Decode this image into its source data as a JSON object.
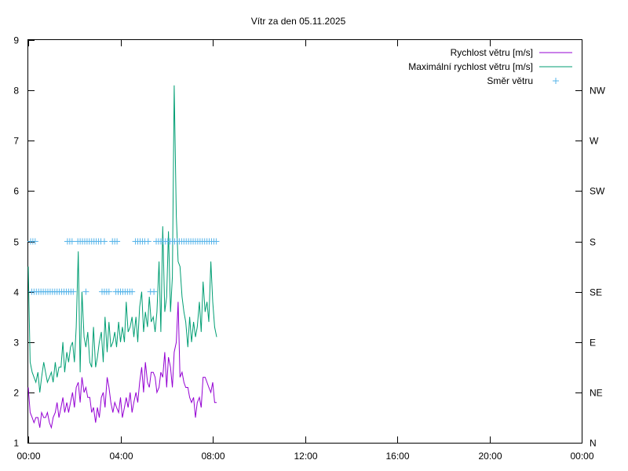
{
  "chart_data": {
    "type": "line",
    "title": "Vítr za den 05.11.2025",
    "x_unit": "hours",
    "xlim": [
      0,
      24
    ],
    "x_tick_values": [
      0,
      4,
      8,
      12,
      16,
      20,
      24
    ],
    "x_tick_labels": [
      "00:00",
      "04:00",
      "08:00",
      "12:00",
      "16:00",
      "20:00",
      "00:00"
    ],
    "ylim": [
      1,
      9
    ],
    "y_ticks": [
      1,
      2,
      3,
      4,
      5,
      6,
      7,
      8,
      9
    ],
    "y2_ticks": [
      1,
      2,
      3,
      4,
      5,
      6,
      7,
      8
    ],
    "y2_tick_labels": [
      "N",
      "NE",
      "E",
      "SE",
      "S",
      "SW",
      "W",
      "NW"
    ],
    "grid": false,
    "legend_position": "top-right",
    "series": [
      {
        "name": "Rychlost větru [m/s]",
        "style": "line",
        "color": "#9400d3",
        "x": [
          0,
          0.08,
          0.17,
          0.25,
          0.33,
          0.42,
          0.5,
          0.58,
          0.67,
          0.75,
          0.83,
          0.92,
          1.0,
          1.08,
          1.17,
          1.25,
          1.33,
          1.42,
          1.5,
          1.58,
          1.67,
          1.75,
          1.83,
          1.92,
          2.0,
          2.08,
          2.17,
          2.25,
          2.33,
          2.42,
          2.5,
          2.58,
          2.67,
          2.75,
          2.83,
          2.92,
          3.0,
          3.08,
          3.17,
          3.25,
          3.33,
          3.42,
          3.5,
          3.58,
          3.67,
          3.75,
          3.83,
          3.92,
          4.0,
          4.08,
          4.17,
          4.25,
          4.33,
          4.42,
          4.5,
          4.58,
          4.67,
          4.75,
          4.83,
          4.92,
          5.0,
          5.08,
          5.17,
          5.25,
          5.33,
          5.42,
          5.5,
          5.58,
          5.67,
          5.75,
          5.83,
          5.92,
          6.0,
          6.08,
          6.17,
          6.25,
          6.33,
          6.42,
          6.5,
          6.58,
          6.67,
          6.75,
          6.83,
          6.92,
          7.0,
          7.08,
          7.17,
          7.25,
          7.33,
          7.42,
          7.5,
          7.58,
          7.67,
          7.75,
          7.83,
          7.92,
          8.0,
          8.08,
          8.17
        ],
        "y": [
          2.1,
          1.6,
          1.5,
          1.4,
          1.5,
          1.5,
          1.3,
          1.6,
          1.5,
          1.5,
          1.6,
          1.4,
          1.3,
          1.5,
          1.6,
          1.8,
          1.5,
          1.7,
          1.9,
          1.6,
          1.8,
          1.6,
          1.8,
          2.0,
          1.7,
          2.1,
          2.2,
          1.8,
          2.3,
          2.0,
          2.1,
          1.9,
          1.9,
          1.6,
          1.7,
          1.4,
          1.7,
          1.5,
          1.9,
          2.0,
          1.7,
          2.3,
          2.1,
          1.8,
          1.6,
          1.8,
          1.7,
          1.6,
          1.9,
          1.5,
          1.7,
          1.9,
          1.7,
          2.0,
          1.6,
          1.8,
          2.0,
          1.8,
          2.2,
          2.5,
          2.0,
          2.6,
          2.2,
          2.1,
          2.4,
          2.4,
          2.3,
          2.0,
          2.1,
          2.4,
          2.3,
          2.8,
          2.1,
          2.7,
          2.5,
          2.1,
          2.8,
          3.0,
          3.8,
          2.3,
          2.4,
          2.2,
          2.1,
          2.1,
          1.9,
          1.8,
          1.9,
          1.5,
          1.8,
          1.9,
          1.7,
          2.3,
          2.3,
          2.2,
          2.1,
          2.0,
          2.2,
          1.8,
          1.8
        ]
      },
      {
        "name": "Maximální rychlost větru [m/s]",
        "style": "line",
        "color": "#009e73",
        "x": [
          0,
          0.08,
          0.17,
          0.25,
          0.33,
          0.42,
          0.5,
          0.58,
          0.67,
          0.75,
          0.83,
          0.92,
          1.0,
          1.08,
          1.17,
          1.25,
          1.33,
          1.42,
          1.5,
          1.58,
          1.67,
          1.75,
          1.83,
          1.92,
          2.0,
          2.08,
          2.17,
          2.25,
          2.33,
          2.42,
          2.5,
          2.58,
          2.67,
          2.75,
          2.83,
          2.92,
          3.0,
          3.08,
          3.17,
          3.25,
          3.33,
          3.42,
          3.5,
          3.58,
          3.67,
          3.75,
          3.83,
          3.92,
          4.0,
          4.08,
          4.17,
          4.25,
          4.33,
          4.42,
          4.5,
          4.58,
          4.67,
          4.75,
          4.83,
          4.92,
          5.0,
          5.08,
          5.17,
          5.25,
          5.33,
          5.42,
          5.5,
          5.58,
          5.67,
          5.75,
          5.83,
          5.92,
          6.0,
          6.08,
          6.17,
          6.25,
          6.33,
          6.42,
          6.5,
          6.58,
          6.67,
          6.75,
          6.83,
          6.92,
          7.0,
          7.08,
          7.17,
          7.25,
          7.33,
          7.42,
          7.5,
          7.58,
          7.67,
          7.75,
          7.83,
          7.92,
          8.0,
          8.08,
          8.17
        ],
        "y": [
          4.5,
          2.6,
          2.4,
          2.3,
          2.2,
          2.4,
          2.0,
          2.3,
          2.6,
          2.4,
          2.2,
          2.3,
          2.4,
          2.2,
          2.6,
          2.3,
          2.5,
          2.5,
          3.0,
          2.4,
          2.8,
          2.6,
          2.9,
          3.0,
          2.6,
          3.3,
          4.8,
          2.4,
          4.0,
          3.1,
          2.9,
          3.2,
          2.6,
          2.5,
          3.3,
          2.5,
          2.7,
          3.0,
          3.2,
          2.6,
          3.5,
          2.8,
          3.4,
          2.9,
          3.0,
          3.2,
          2.9,
          3.4,
          3.0,
          3.3,
          3.0,
          3.8,
          3.2,
          3.3,
          3.5,
          3.1,
          3.5,
          3.0,
          3.7,
          4.0,
          3.2,
          3.6,
          3.3,
          3.9,
          3.4,
          3.5,
          3.2,
          3.6,
          4.6,
          3.2,
          5.3,
          3.6,
          3.9,
          5.2,
          3.6,
          4.3,
          8.1,
          5.5,
          4.6,
          4.5,
          3.9,
          3.6,
          3.4,
          2.9,
          3.5,
          3.0,
          3.4,
          3.1,
          3.3,
          3.8,
          3.2,
          4.2,
          3.6,
          3.8,
          3.4,
          4.6,
          3.8,
          3.3,
          3.1
        ]
      },
      {
        "name": "Směr větru",
        "style": "points",
        "marker": "+",
        "color": "#56b4e9",
        "axis": "y2",
        "x": [
          0.1,
          0.2,
          0.3,
          0.15,
          0.25,
          0.35,
          0.45,
          0.55,
          0.65,
          0.75,
          0.85,
          0.95,
          1.05,
          1.15,
          1.25,
          1.35,
          1.45,
          1.55,
          1.65,
          1.75,
          1.85,
          1.95,
          1.7,
          1.8,
          1.9,
          2.15,
          2.25,
          2.35,
          2.45,
          2.55,
          2.65,
          2.75,
          2.85,
          2.95,
          3.05,
          3.15,
          3.3,
          2.5,
          3.2,
          3.3,
          3.4,
          3.5,
          3.8,
          3.9,
          4.0,
          3.65,
          3.75,
          3.85,
          4.0,
          4.1,
          4.2,
          4.3,
          4.4,
          4.5,
          4.65,
          4.75,
          4.85,
          4.95,
          5.05,
          5.2,
          5.3,
          5.45,
          5.55,
          5.65,
          5.75,
          5.85,
          5.95,
          6.05,
          6.15,
          6.25,
          6.35,
          6.45,
          6.55,
          6.65,
          6.75,
          6.85,
          6.95,
          7.05,
          7.15,
          7.25,
          7.35,
          7.45,
          7.55,
          7.65,
          7.75,
          7.85,
          7.95,
          8.05,
          8.15
        ],
        "y": [
          5,
          5,
          5,
          4,
          4,
          4,
          4,
          4,
          4,
          4,
          4,
          4,
          4,
          4,
          4,
          4,
          4,
          4,
          4,
          4,
          4,
          4,
          5,
          5,
          5,
          5,
          5,
          5,
          5,
          5,
          5,
          5,
          5,
          5,
          5,
          5,
          5,
          4,
          4,
          4,
          4,
          4,
          4,
          4,
          4,
          5,
          5,
          5,
          4,
          4,
          4,
          4,
          4,
          4,
          5,
          5,
          5,
          5,
          5,
          5,
          4,
          4,
          5,
          5,
          5,
          5,
          5,
          5,
          5,
          5,
          5,
          5,
          5,
          5,
          5,
          5,
          5,
          5,
          5,
          5,
          5,
          5,
          5,
          5,
          5,
          5,
          5,
          5,
          5
        ]
      }
    ]
  }
}
